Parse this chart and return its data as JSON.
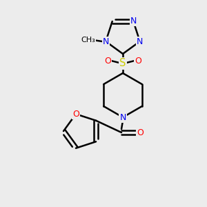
{
  "background_color": "#ececec",
  "bond_color": "#000000",
  "atom_colors": {
    "N": "#0000ee",
    "O": "#ff0000",
    "S": "#cccc00",
    "C": "#000000"
  },
  "bond_width": 1.8,
  "figsize": [
    3.0,
    3.0
  ],
  "dpi": 100
}
